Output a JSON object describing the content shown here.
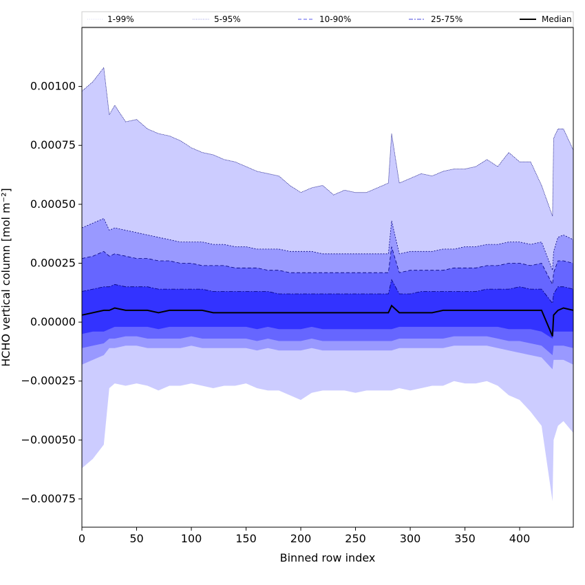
{
  "chart_data": {
    "type": "area",
    "xlabel": "Binned row index",
    "ylabel": "HCHO vertical column [mol m⁻²]",
    "xlim": [
      0,
      449
    ],
    "ylim": [
      -0.00087,
      0.00125
    ],
    "xticks": [
      0,
      50,
      100,
      150,
      200,
      250,
      300,
      350,
      400
    ],
    "yticks": [
      -0.00075,
      -0.0005,
      -0.00025,
      0.0,
      0.00025,
      0.0005,
      0.00075,
      0.001
    ],
    "ytick_labels": [
      "−0.00075",
      "−0.00050",
      "−0.00025",
      "0.00000",
      "0.00025",
      "0.00050",
      "0.00075",
      "0.00100"
    ],
    "grid": false,
    "legend_position": "top",
    "colors": {
      "band_1_99": "#ccccff",
      "band_5_95": "#9999ff",
      "band_10_90": "#6666ff",
      "band_25_75": "#3333ff",
      "median": "#000000",
      "edge": "#00007a"
    },
    "legend": [
      {
        "label": "1-99%",
        "style": "dotted-thin"
      },
      {
        "label": "5-95%",
        "style": "dotted"
      },
      {
        "label": "10-90%",
        "style": "dashed"
      },
      {
        "label": "25-75%",
        "style": "dashdot"
      },
      {
        "label": "Median",
        "style": "solid"
      }
    ],
    "x": [
      0,
      10,
      20,
      25,
      30,
      40,
      50,
      60,
      70,
      80,
      90,
      100,
      110,
      120,
      130,
      140,
      150,
      160,
      170,
      180,
      190,
      200,
      210,
      220,
      230,
      240,
      250,
      260,
      270,
      280,
      283,
      290,
      300,
      310,
      320,
      330,
      340,
      350,
      360,
      370,
      380,
      390,
      400,
      410,
      420,
      430,
      431,
      435,
      440,
      449
    ],
    "series": [
      {
        "name": "1-99%",
        "lower": [
          -0.00062,
          -0.00058,
          -0.00052,
          -0.00028,
          -0.00026,
          -0.00027,
          -0.00026,
          -0.00027,
          -0.00029,
          -0.00027,
          -0.00027,
          -0.00026,
          -0.00027,
          -0.00028,
          -0.00027,
          -0.00027,
          -0.00026,
          -0.00028,
          -0.00029,
          -0.00029,
          -0.00031,
          -0.00033,
          -0.0003,
          -0.00029,
          -0.00029,
          -0.00029,
          -0.0003,
          -0.00029,
          -0.00029,
          -0.00029,
          -0.00029,
          -0.00028,
          -0.00029,
          -0.00028,
          -0.00027,
          -0.00027,
          -0.00025,
          -0.00026,
          -0.00026,
          -0.00025,
          -0.00027,
          -0.00031,
          -0.00033,
          -0.00038,
          -0.00044,
          -0.00076,
          -0.0005,
          -0.00044,
          -0.00042,
          -0.00047
        ],
        "upper": [
          0.00098,
          0.00102,
          0.00108,
          0.00088,
          0.00092,
          0.00085,
          0.00086,
          0.00082,
          0.0008,
          0.00079,
          0.00077,
          0.00074,
          0.00072,
          0.00071,
          0.00069,
          0.00068,
          0.00066,
          0.00064,
          0.00063,
          0.00062,
          0.00058,
          0.00055,
          0.00057,
          0.00058,
          0.00054,
          0.00056,
          0.00055,
          0.00055,
          0.00057,
          0.00059,
          0.0008,
          0.00059,
          0.00061,
          0.00063,
          0.00062,
          0.00064,
          0.00065,
          0.00065,
          0.00066,
          0.00069,
          0.00066,
          0.00072,
          0.00068,
          0.00068,
          0.00058,
          0.00045,
          0.00078,
          0.00082,
          0.00082,
          0.00073
        ]
      },
      {
        "name": "5-95%",
        "lower": [
          -0.00018,
          -0.00016,
          -0.00014,
          -0.00011,
          -0.00011,
          -0.0001,
          -0.0001,
          -0.00011,
          -0.00011,
          -0.00011,
          -0.00011,
          -0.0001,
          -0.00011,
          -0.00011,
          -0.00011,
          -0.00011,
          -0.00011,
          -0.00012,
          -0.00011,
          -0.00012,
          -0.00012,
          -0.00012,
          -0.00011,
          -0.00012,
          -0.00012,
          -0.00012,
          -0.00012,
          -0.00012,
          -0.00012,
          -0.00012,
          -0.00012,
          -0.00011,
          -0.00011,
          -0.00011,
          -0.00011,
          -0.00011,
          -0.0001,
          -0.0001,
          -0.0001,
          -0.0001,
          -0.00011,
          -0.00012,
          -0.00013,
          -0.00014,
          -0.00015,
          -0.0002,
          -0.00016,
          -0.00016,
          -0.00016,
          -0.00018
        ],
        "upper": [
          0.0004,
          0.00042,
          0.00044,
          0.00039,
          0.0004,
          0.00039,
          0.00038,
          0.00037,
          0.00036,
          0.00035,
          0.00034,
          0.00034,
          0.00034,
          0.00033,
          0.00033,
          0.00032,
          0.00032,
          0.00031,
          0.00031,
          0.00031,
          0.0003,
          0.0003,
          0.0003,
          0.00029,
          0.00029,
          0.00029,
          0.00029,
          0.00029,
          0.00029,
          0.00029,
          0.00043,
          0.00029,
          0.0003,
          0.0003,
          0.0003,
          0.00031,
          0.00031,
          0.00032,
          0.00032,
          0.00033,
          0.00033,
          0.00034,
          0.00034,
          0.00033,
          0.00034,
          0.00022,
          0.0003,
          0.00036,
          0.00037,
          0.00035
        ]
      },
      {
        "name": "10-90%",
        "lower": [
          -0.00011,
          -0.0001,
          -9e-05,
          -7e-05,
          -7e-05,
          -6e-05,
          -6e-05,
          -7e-05,
          -7e-05,
          -7e-05,
          -7e-05,
          -6e-05,
          -7e-05,
          -7e-05,
          -7e-05,
          -7e-05,
          -7e-05,
          -8e-05,
          -7e-05,
          -8e-05,
          -8e-05,
          -8e-05,
          -7e-05,
          -8e-05,
          -8e-05,
          -8e-05,
          -8e-05,
          -8e-05,
          -8e-05,
          -8e-05,
          -8e-05,
          -7e-05,
          -7e-05,
          -7e-05,
          -7e-05,
          -7e-05,
          -6e-05,
          -6e-05,
          -6e-05,
          -6e-05,
          -7e-05,
          -8e-05,
          -8e-05,
          -9e-05,
          -0.0001,
          -0.00014,
          -0.0001,
          -0.0001,
          -0.0001,
          -0.00011
        ],
        "upper": [
          0.00027,
          0.00028,
          0.0003,
          0.00028,
          0.00029,
          0.00028,
          0.00027,
          0.00027,
          0.00026,
          0.00026,
          0.00025,
          0.00025,
          0.00024,
          0.00024,
          0.00024,
          0.00023,
          0.00023,
          0.00023,
          0.00022,
          0.00022,
          0.00021,
          0.00021,
          0.00021,
          0.00021,
          0.00021,
          0.00021,
          0.00021,
          0.00021,
          0.00021,
          0.00021,
          0.00032,
          0.00021,
          0.00022,
          0.00022,
          0.00022,
          0.00022,
          0.00023,
          0.00023,
          0.00023,
          0.00024,
          0.00024,
          0.00025,
          0.00025,
          0.00024,
          0.00025,
          0.00016,
          0.00021,
          0.00026,
          0.00026,
          0.00025
        ]
      },
      {
        "name": "25-75%",
        "lower": [
          -5e-05,
          -4e-05,
          -4e-05,
          -3e-05,
          -2e-05,
          -2e-05,
          -2e-05,
          -2e-05,
          -3e-05,
          -2e-05,
          -2e-05,
          -2e-05,
          -2e-05,
          -2e-05,
          -2e-05,
          -2e-05,
          -2e-05,
          -3e-05,
          -2e-05,
          -3e-05,
          -3e-05,
          -3e-05,
          -2e-05,
          -3e-05,
          -3e-05,
          -3e-05,
          -3e-05,
          -3e-05,
          -3e-05,
          -3e-05,
          -3e-05,
          -2e-05,
          -2e-05,
          -2e-05,
          -2e-05,
          -2e-05,
          -2e-05,
          -2e-05,
          -2e-05,
          -2e-05,
          -2e-05,
          -3e-05,
          -3e-05,
          -3e-05,
          -4e-05,
          -7e-05,
          -4e-05,
          -4e-05,
          -4e-05,
          -4e-05
        ],
        "upper": [
          0.00013,
          0.00014,
          0.00015,
          0.00015,
          0.00016,
          0.00015,
          0.00015,
          0.00015,
          0.00014,
          0.00014,
          0.00014,
          0.00014,
          0.00014,
          0.00013,
          0.00013,
          0.00013,
          0.00013,
          0.00013,
          0.00013,
          0.00012,
          0.00012,
          0.00012,
          0.00012,
          0.00012,
          0.00012,
          0.00012,
          0.00012,
          0.00012,
          0.00012,
          0.00012,
          0.00018,
          0.00012,
          0.00012,
          0.00013,
          0.00013,
          0.00013,
          0.00013,
          0.00013,
          0.00013,
          0.00014,
          0.00014,
          0.00014,
          0.00015,
          0.00014,
          0.00014,
          8e-05,
          0.00012,
          0.00015,
          0.00015,
          0.00014
        ]
      },
      {
        "name": "Median",
        "values": [
          3e-05,
          4e-05,
          5e-05,
          5e-05,
          6e-05,
          5e-05,
          5e-05,
          5e-05,
          4e-05,
          5e-05,
          5e-05,
          5e-05,
          5e-05,
          4e-05,
          4e-05,
          4e-05,
          4e-05,
          4e-05,
          4e-05,
          4e-05,
          4e-05,
          4e-05,
          4e-05,
          4e-05,
          4e-05,
          4e-05,
          4e-05,
          4e-05,
          4e-05,
          4e-05,
          7e-05,
          4e-05,
          4e-05,
          4e-05,
          4e-05,
          5e-05,
          5e-05,
          5e-05,
          5e-05,
          5e-05,
          5e-05,
          5e-05,
          5e-05,
          5e-05,
          5e-05,
          -6e-05,
          3e-05,
          5e-05,
          6e-05,
          5e-05
        ]
      }
    ]
  }
}
